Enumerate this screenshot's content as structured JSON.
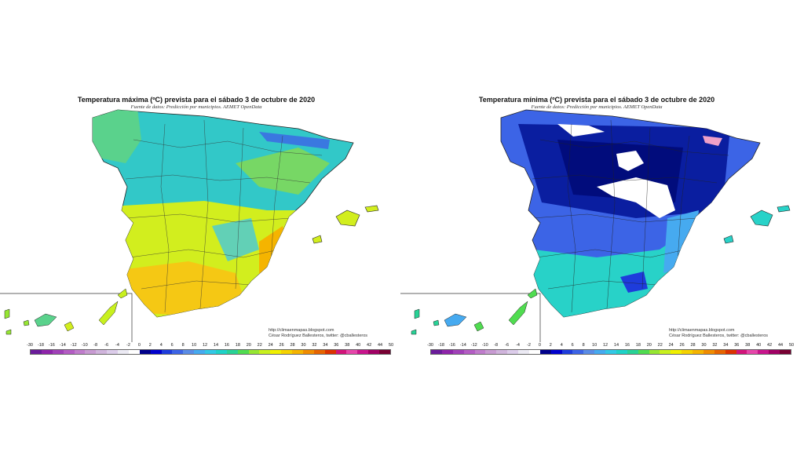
{
  "left_map": {
    "title": "Temperatura máxima (ºC) prevista para el sábado 3 de octubre de 2020",
    "subtitle": "Fuente de datos: Predicción por municipios. AEMET OpenData",
    "credit_line1": "http://climaenmapas.blogspot.com",
    "credit_line2": "César Rodríguez Ballesteros, twitter: @cballesteros"
  },
  "right_map": {
    "title": "Temperatura mínima (ºC) prevista para el sábado 3 de octubre de 2020",
    "subtitle": "Fuente de datos: Predicción por municipios. AEMET OpenData",
    "credit_line1": "http://climaenmapas.blogspot.com",
    "credit_line2": "César Rodríguez Ballesteros, twitter: @cballesteros"
  },
  "legend": {
    "ticks": [
      "-30",
      "-18",
      "-16",
      "-14",
      "-12",
      "-10",
      "-8",
      "-6",
      "-4",
      "-2",
      "0",
      "2",
      "4",
      "6",
      "8",
      "10",
      "12",
      "14",
      "16",
      "18",
      "20",
      "22",
      "24",
      "26",
      "28",
      "30",
      "32",
      "34",
      "36",
      "38",
      "40",
      "42",
      "44",
      "50"
    ],
    "colors": [
      "#6a1b9a",
      "#8e24aa",
      "#a040b8",
      "#b45cc4",
      "#c07ccc",
      "#c89ad2",
      "#d0b4dc",
      "#dcccea",
      "#eceaf4",
      "#ffffff",
      "#00008b",
      "#0000cd",
      "#1e3cdc",
      "#3c64e6",
      "#5a8ce6",
      "#46aaf0",
      "#32c8e6",
      "#1ed2c8",
      "#28d296",
      "#50dc50",
      "#96e632",
      "#c8f01e",
      "#f0f000",
      "#f5d200",
      "#f5b400",
      "#f08c00",
      "#e66400",
      "#dc3200",
      "#d2147a",
      "#e646aa",
      "#c8148c",
      "#a00064",
      "#780032"
    ]
  },
  "colors": {
    "left_base": "#32c8c8",
    "left_south": "#d2ee1e",
    "left_hot": "#f5c814",
    "right_base": "#3c64e6",
    "right_dark": "#0a1ea0",
    "right_south": "#28d2c8"
  }
}
